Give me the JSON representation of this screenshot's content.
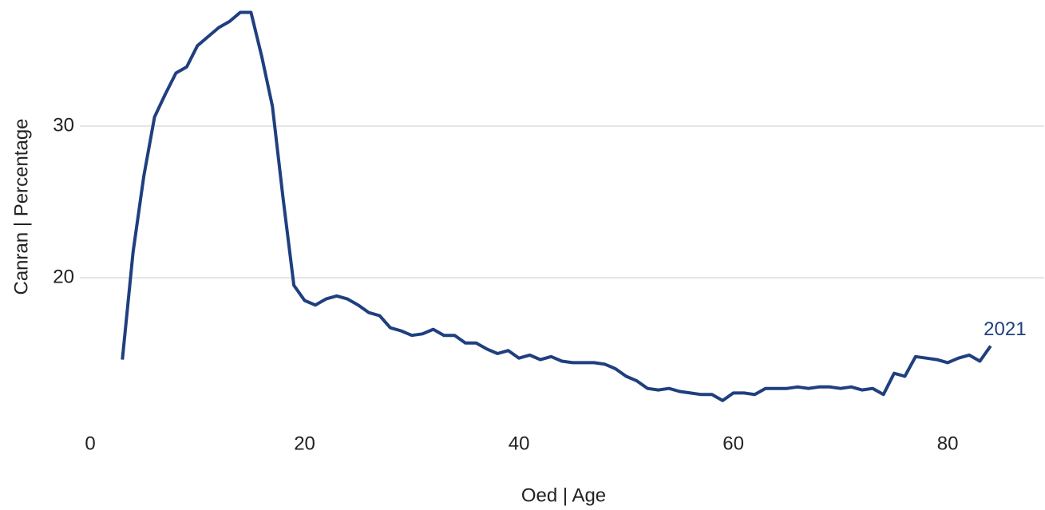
{
  "chart_data": {
    "type": "line",
    "x_label": "Oed | Age",
    "y_label": "Canran | Percentage",
    "x": [
      3,
      4,
      5,
      6,
      7,
      8,
      9,
      10,
      11,
      12,
      13,
      14,
      15,
      16,
      17,
      18,
      19,
      20,
      21,
      22,
      23,
      24,
      25,
      26,
      27,
      28,
      29,
      30,
      31,
      32,
      33,
      34,
      35,
      36,
      37,
      38,
      39,
      40,
      41,
      42,
      43,
      44,
      45,
      46,
      47,
      48,
      49,
      50,
      51,
      52,
      53,
      54,
      55,
      56,
      57,
      58,
      59,
      60,
      61,
      62,
      63,
      64,
      65,
      66,
      67,
      68,
      69,
      70,
      71,
      72,
      73,
      74,
      75,
      76,
      77,
      78,
      79,
      80,
      81,
      82,
      83,
      84
    ],
    "series": [
      {
        "name": "2021",
        "color": "#1f3f7f",
        "values": [
          14.6,
          21.7,
          26.7,
          30.6,
          32.1,
          33.5,
          33.9,
          35.3,
          35.9,
          36.5,
          36.9,
          37.5,
          37.5,
          34.6,
          31.3,
          25.2,
          19.5,
          18.5,
          18.2,
          18.6,
          18.8,
          18.6,
          18.2,
          17.7,
          17.5,
          16.7,
          16.5,
          16.2,
          16.3,
          16.6,
          16.2,
          16.2,
          15.7,
          15.7,
          15.3,
          15.0,
          15.2,
          14.7,
          14.9,
          14.6,
          14.8,
          14.5,
          14.4,
          14.4,
          14.4,
          14.3,
          14.0,
          13.5,
          13.2,
          12.7,
          12.6,
          12.7,
          12.5,
          12.4,
          12.3,
          12.3,
          11.9,
          12.4,
          12.4,
          12.3,
          12.7,
          12.7,
          12.7,
          12.8,
          12.7,
          12.8,
          12.8,
          12.7,
          12.8,
          12.6,
          12.7,
          12.3,
          13.7,
          13.5,
          14.8,
          14.7,
          14.6,
          14.4,
          14.7,
          14.9,
          14.5,
          15.5
        ]
      }
    ],
    "xlim": [
      0,
      89
    ],
    "xticks": [
      0,
      20,
      40,
      60,
      80
    ],
    "ylim": [
      10.5,
      37.8
    ],
    "yticks": [
      20,
      30
    ],
    "grid": true
  }
}
